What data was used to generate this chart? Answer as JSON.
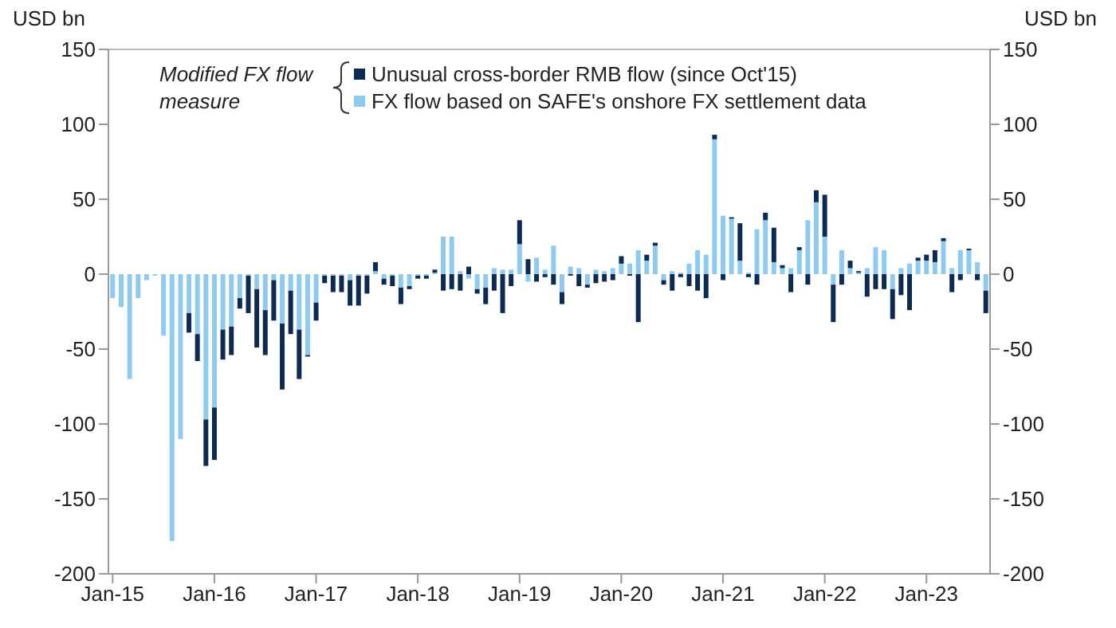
{
  "chart_data": {
    "type": "bar",
    "stacked": true,
    "ylabel": "USD bn",
    "y2label": "USD bn",
    "legend_title": "Modified FX flow measure",
    "legend": "top",
    "categories": [
      "Jan-15",
      null,
      null,
      null,
      null,
      null,
      null,
      null,
      null,
      null,
      null,
      null,
      "Jan-16",
      null,
      null,
      null,
      null,
      null,
      null,
      null,
      null,
      null,
      null,
      null,
      "Jan-17",
      null,
      null,
      null,
      null,
      null,
      null,
      null,
      null,
      null,
      null,
      null,
      "Jan-18",
      null,
      null,
      null,
      null,
      null,
      null,
      null,
      null,
      null,
      null,
      null,
      "Jan-19",
      null,
      null,
      null,
      null,
      null,
      null,
      null,
      null,
      null,
      null,
      null,
      "Jan-20",
      null,
      null,
      null,
      null,
      null,
      null,
      null,
      null,
      null,
      null,
      null,
      "Jan-21",
      null,
      null,
      null,
      null,
      null,
      null,
      null,
      null,
      null,
      null,
      null,
      "Jan-22",
      null,
      null,
      null,
      null,
      null,
      null,
      null,
      null,
      null,
      null,
      null,
      "Jan-23",
      null,
      null,
      null,
      null,
      null,
      null,
      null
    ],
    "series": [
      {
        "name": "FX flow based on SAFE's onshore FX settlement data",
        "color": "#8fcaf0",
        "values": [
          -16,
          -22,
          -70,
          -16,
          -4,
          -1,
          -41,
          -178,
          -110,
          -26,
          -40,
          -97,
          -89,
          -37,
          -35,
          -16,
          -1,
          -10,
          -24,
          -4,
          -33,
          -11,
          -37,
          -54,
          -19,
          -1,
          -1,
          -1,
          -4,
          -1,
          -1,
          2,
          -3,
          -1,
          -9,
          -8,
          -1,
          -1,
          1,
          25,
          25,
          2,
          -3,
          -10,
          -9,
          4,
          3,
          3,
          20,
          -5,
          11,
          3,
          19,
          -12,
          5,
          4,
          -7,
          3,
          2,
          4,
          7,
          7,
          16,
          9,
          19,
          -4,
          2,
          1,
          7,
          16,
          13,
          90,
          39,
          37,
          9,
          1,
          30,
          36,
          8,
          4,
          4,
          16,
          36,
          48,
          25,
          -7,
          16,
          4,
          1,
          4,
          18,
          16,
          -10,
          4,
          7,
          9,
          9,
          8,
          22,
          4,
          16,
          16,
          8,
          -11
        ]
      },
      {
        "name": "Unusual cross-border RMB flow (since Oct'15)",
        "color": "#0c2a52",
        "values": [
          null,
          null,
          null,
          null,
          null,
          null,
          null,
          null,
          null,
          -13,
          -18,
          -31,
          -35,
          -20,
          -19,
          -7,
          -25,
          -39,
          -30,
          -27,
          -44,
          -29,
          -33,
          -1,
          -12,
          -5,
          -11,
          -11,
          -17,
          -20,
          -12,
          6,
          -4,
          -7,
          -11,
          -2,
          -2,
          -2,
          2,
          -11,
          -10,
          -11,
          5,
          -3,
          -11,
          -11,
          -26,
          -8,
          16,
          10,
          -5,
          -2,
          -7,
          -8,
          -1,
          -8,
          -2,
          -6,
          -5,
          -4,
          5,
          -1,
          -32,
          4,
          2,
          -3,
          -11,
          -2,
          -8,
          -11,
          -16,
          3,
          -4,
          1,
          25,
          -2,
          -7,
          5,
          23,
          2,
          -12,
          2,
          -7,
          8,
          28,
          -25,
          -7,
          5,
          1,
          -15,
          -10,
          -10,
          -20,
          -14,
          -24,
          2,
          4,
          8,
          2,
          -12,
          -4,
          1,
          -4,
          -15
        ]
      }
    ],
    "ylim": [
      -200,
      150
    ],
    "yticks": [
      -200,
      -150,
      -100,
      -50,
      0,
      50,
      100,
      150
    ],
    "y2lim": [
      -200,
      150
    ],
    "y2ticks": [
      -200,
      -150,
      -100,
      -50,
      0,
      50,
      100,
      150
    ]
  }
}
